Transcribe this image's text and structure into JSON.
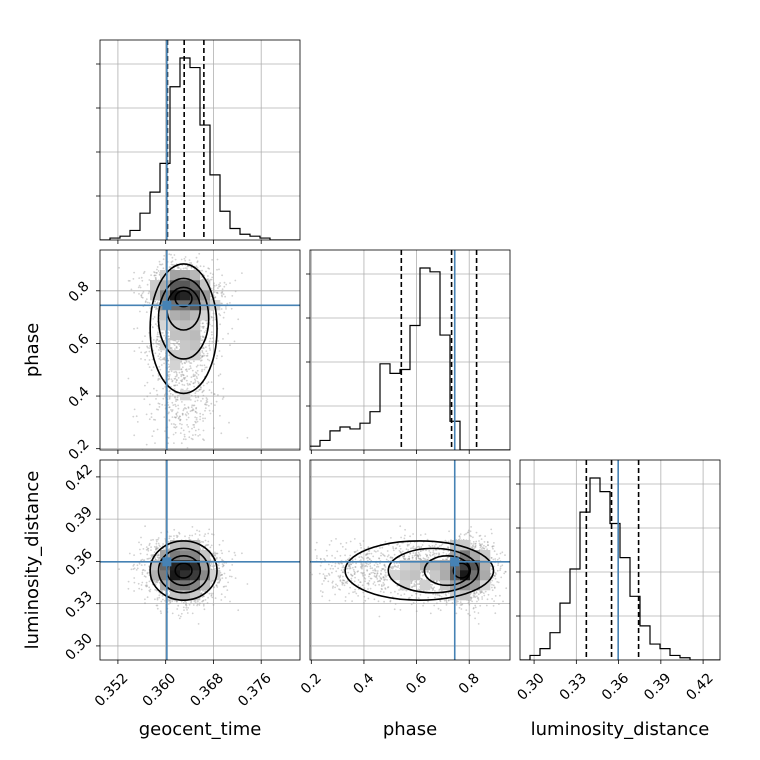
{
  "chart_data": {
    "type": "corner",
    "parameters": [
      "geocent_time",
      "phase",
      "luminosity_distance"
    ],
    "axis_labels": {
      "x": [
        "geocent_time",
        "phase",
        "luminosity_distance"
      ],
      "y": [
        "phase",
        "luminosity_distance"
      ]
    },
    "ranges": {
      "geocent_time": [
        0.349,
        0.3825
      ],
      "phase": [
        0.195,
        0.955
      ],
      "luminosity_distance": [
        0.29,
        0.432
      ]
    },
    "ticks": {
      "geocent_time": [
        {
          "v": 0.352,
          "label": "0.352"
        },
        {
          "v": 0.36,
          "label": "0.360"
        },
        {
          "v": 0.368,
          "label": "0.368"
        },
        {
          "v": 0.376,
          "label": "0.376"
        }
      ],
      "phase": [
        {
          "v": 0.2,
          "label": "0.2"
        },
        {
          "v": 0.4,
          "label": "0.4"
        },
        {
          "v": 0.6,
          "label": "0.6"
        },
        {
          "v": 0.8,
          "label": "0.8"
        }
      ],
      "luminosity_distance": [
        {
          "v": 0.3,
          "label": "0.30"
        },
        {
          "v": 0.33,
          "label": "0.33"
        },
        {
          "v": 0.36,
          "label": "0.36"
        },
        {
          "v": 0.39,
          "label": "0.39"
        },
        {
          "v": 0.42,
          "label": "0.42"
        }
      ]
    },
    "truths": {
      "geocent_time": 0.3602,
      "phase": 0.745,
      "luminosity_distance": 0.3597
    },
    "quantiles": {
      "geocent_time": [
        0.3603,
        0.3631,
        0.3664
      ],
      "phase": [
        0.542,
        0.733,
        0.828
      ],
      "luminosity_distance": [
        0.3371,
        0.355,
        0.3742
      ]
    },
    "histograms": {
      "geocent_time": {
        "edges_start": 0.349,
        "bin_width": 0.001675,
        "counts": [
          0,
          1,
          2,
          5,
          14,
          25,
          40,
          80,
          95,
          90,
          60,
          34,
          15,
          6,
          3,
          2,
          1,
          0,
          0,
          0
        ]
      },
      "phase": {
        "edges_start": 0.195,
        "bin_width": 0.038,
        "counts": [
          2,
          5,
          10,
          12,
          11,
          14,
          20,
          45,
          40,
          42,
          65,
          95,
          93,
          60,
          15,
          0,
          0,
          0,
          0,
          0
        ]
      },
      "luminosity_distance": {
        "edges_start": 0.29,
        "bin_width": 0.0071,
        "counts": [
          0,
          2,
          5,
          12,
          25,
          40,
          65,
          80,
          74,
          60,
          45,
          28,
          15,
          7,
          5,
          2,
          1,
          0,
          0,
          0
        ]
      }
    },
    "samples": {
      "count": 3000,
      "center": {
        "geocent_time": 0.363,
        "phase": 0.77,
        "luminosity_distance": 0.3535
      }
    },
    "grid": true
  }
}
